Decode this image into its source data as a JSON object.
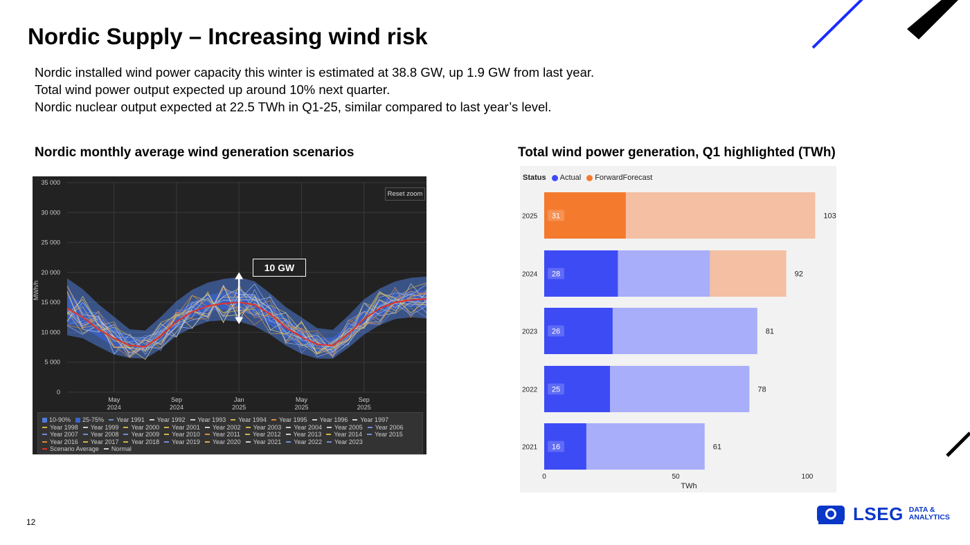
{
  "title": "Nordic Supply – Increasing wind risk",
  "bullets": [
    "Nordic installed wind power capacity this winter is estimated at 38.8 GW, up 1.9 GW from last year.",
    "Total wind power output expected up around 10% next quarter.",
    "Nordic nuclear output expected at 22.5 TWh in Q1-25, similar compared to last year’s level."
  ],
  "page_number": "12",
  "logo": {
    "word": "LSEG",
    "tag_line1": "DATA &",
    "tag_line2": "ANALYTICS"
  },
  "colors": {
    "brand_blue": "#0a37c8",
    "actual": "#3d4bf5",
    "actual_light": "#a8aefa",
    "forecast": "#f47a2e",
    "forecast_light": "#f5bfa3",
    "dark_bg": "#222222"
  },
  "left_chart": {
    "heading": "Nordic monthly average wind generation scenarios",
    "reset_zoom": "Reset zoom",
    "annotation": "10 GW",
    "legend": [
      {
        "label": "10-90%",
        "kind": "square",
        "color": "#4f7bd9"
      },
      {
        "label": "25-75%",
        "kind": "square",
        "color": "#3b63c9"
      },
      {
        "label": "Year 1991",
        "kind": "line",
        "color": "#6f8fd6"
      },
      {
        "label": "Year 1992",
        "kind": "line",
        "color": "#cfcfcf"
      },
      {
        "label": "Year 1993",
        "kind": "line",
        "color": "#cfcfcf"
      },
      {
        "label": "Year 1994",
        "kind": "line",
        "color": "#d2b44a"
      },
      {
        "label": "Year 1995",
        "kind": "line",
        "color": "#e08a3c"
      },
      {
        "label": "Year 1996",
        "kind": "line",
        "color": "#cfcfcf"
      },
      {
        "label": "Year 1997",
        "kind": "line",
        "color": "#cfcfcf"
      },
      {
        "label": "Year 1998",
        "kind": "line",
        "color": "#d2b44a"
      },
      {
        "label": "Year 1999",
        "kind": "line",
        "color": "#cfcfcf"
      },
      {
        "label": "Year 2000",
        "kind": "line",
        "color": "#d2b44a"
      },
      {
        "label": "Year 2001",
        "kind": "line",
        "color": "#d2b44a"
      },
      {
        "label": "Year 2002",
        "kind": "line",
        "color": "#cfcfcf"
      },
      {
        "label": "Year 2003",
        "kind": "line",
        "color": "#d2b44a"
      },
      {
        "label": "Year 2004",
        "kind": "line",
        "color": "#cfcfcf"
      },
      {
        "label": "Year 2005",
        "kind": "line",
        "color": "#cfcfcf"
      },
      {
        "label": "Year 2006",
        "kind": "line",
        "color": "#6f8fd6"
      },
      {
        "label": "Year 2007",
        "kind": "line",
        "color": "#6f8fd6"
      },
      {
        "label": "Year 2008",
        "kind": "line",
        "color": "#6f8fd6"
      },
      {
        "label": "Year 2009",
        "kind": "line",
        "color": "#6f8fd6"
      },
      {
        "label": "Year 2010",
        "kind": "line",
        "color": "#d2b44a"
      },
      {
        "label": "Year 2011",
        "kind": "line",
        "color": "#e08a3c"
      },
      {
        "label": "Year 2012",
        "kind": "line",
        "color": "#d2b44a"
      },
      {
        "label": "Year 2013",
        "kind": "line",
        "color": "#cfcfcf"
      },
      {
        "label": "Year 2014",
        "kind": "line",
        "color": "#d2b44a"
      },
      {
        "label": "Year 2015",
        "kind": "line",
        "color": "#6f8fd6"
      },
      {
        "label": "Year 2016",
        "kind": "line",
        "color": "#e08a3c"
      },
      {
        "label": "Year 2017",
        "kind": "line",
        "color": "#d2b44a"
      },
      {
        "label": "Year 2018",
        "kind": "line",
        "color": "#d2b44a"
      },
      {
        "label": "Year 2019",
        "kind": "line",
        "color": "#6f8fd6"
      },
      {
        "label": "Year 2020",
        "kind": "line",
        "color": "#d2b44a"
      },
      {
        "label": "Year 2021",
        "kind": "line",
        "color": "#cfcfcf"
      },
      {
        "label": "Year 2022",
        "kind": "line",
        "color": "#6f8fd6"
      },
      {
        "label": "Year 2023",
        "kind": "line",
        "color": "#6f8fd6"
      },
      {
        "label": "Scenario Average",
        "kind": "line",
        "color": "#e0302b"
      },
      {
        "label": "Normal",
        "kind": "line",
        "color": "#cfcfcf"
      }
    ]
  },
  "right_chart": {
    "heading": "Total wind power generation, Q1 highlighted (TWh)",
    "legend_title": "Status",
    "legend_actual": "Actual",
    "legend_forecast": "ForwardForecast"
  },
  "chart_data": [
    {
      "type": "area",
      "title": "Nordic monthly average wind generation scenarios",
      "ylabel": "MWh/h",
      "ylim": [
        0,
        35000
      ],
      "yticks": [
        "35 000",
        "30 000",
        "25 000",
        "20 000",
        "15 000",
        "10 000",
        "5 000",
        "0"
      ],
      "xticks": [
        [
          "May",
          "2024"
        ],
        [
          "Sep",
          "2024"
        ],
        [
          "Jan",
          "2025"
        ],
        [
          "May",
          "2025"
        ],
        [
          "Sep",
          "2025"
        ]
      ],
      "x": [
        "2024-02",
        "2024-03",
        "2024-04",
        "2024-05",
        "2024-06",
        "2024-07",
        "2024-08",
        "2024-09",
        "2024-10",
        "2024-11",
        "2024-12",
        "2025-01",
        "2025-02",
        "2025-03",
        "2025-04",
        "2025-05",
        "2025-06",
        "2025-07",
        "2025-08",
        "2025-09",
        "2025-10",
        "2025-11",
        "2025-12",
        "2026-01"
      ],
      "series": [
        {
          "name": "10-90%",
          "low": [
            9500,
            9000,
            7600,
            6300,
            5700,
            5600,
            7200,
            9400,
            10800,
            11800,
            12000,
            11800,
            11000,
            9600,
            7800,
            6400,
            5600,
            5600,
            7400,
            9600,
            11200,
            12200,
            12500,
            12300
          ],
          "high": [
            19000,
            17200,
            14700,
            12600,
            10500,
            10300,
            12600,
            15200,
            17100,
            18300,
            18900,
            19200,
            18500,
            16500,
            14200,
            12500,
            10700,
            10400,
            12800,
            15500,
            17300,
            18500,
            19100,
            19300
          ]
        },
        {
          "name": "25-75%",
          "low": [
            11600,
            10800,
            9200,
            7600,
            6900,
            6900,
            8700,
            11000,
            12500,
            13500,
            13800,
            13600,
            12800,
            11200,
            9200,
            7700,
            6900,
            6800,
            8800,
            11300,
            12900,
            13900,
            14300,
            14100
          ],
          "high": [
            16300,
            14900,
            12700,
            10800,
            9000,
            9000,
            11000,
            13400,
            15100,
            16200,
            16700,
            16900,
            16300,
            14500,
            12400,
            10700,
            9200,
            9100,
            11100,
            13600,
            15300,
            16400,
            16900,
            17100
          ]
        },
        {
          "name": "Scenario Average",
          "values": [
            14000,
            12500,
            10500,
            9000,
            7800,
            7600,
            9400,
            11800,
            13400,
            14400,
            14800,
            15000,
            14600,
            13000,
            10800,
            9200,
            8000,
            7800,
            9700,
            12200,
            14000,
            15000,
            15400,
            15600
          ]
        }
      ]
    },
    {
      "type": "bar",
      "title": "Total wind power generation, Q1 highlighted (TWh)",
      "xlabel": "TWh",
      "xlim": [
        0,
        100
      ],
      "xticks": [
        0,
        50,
        100
      ],
      "categories": [
        "2025",
        "2024",
        "2023",
        "2022",
        "2021"
      ],
      "q1_labels": [
        "31",
        "28",
        "26",
        "25",
        "16"
      ],
      "total_labels": [
        "103",
        "92",
        "81",
        "78",
        "61"
      ],
      "series": [
        {
          "name": "Actual",
          "status": "Actual",
          "values": [
            0,
            63,
            81,
            78,
            61
          ]
        },
        {
          "name": "ForwardForecast",
          "status": "ForwardForecast",
          "values": [
            103,
            29,
            0,
            0,
            0
          ]
        }
      ],
      "q1_values": [
        31,
        28,
        26,
        25,
        16
      ],
      "q1_status": [
        "ForwardForecast",
        "Actual",
        "Actual",
        "Actual",
        "Actual"
      ]
    }
  ]
}
